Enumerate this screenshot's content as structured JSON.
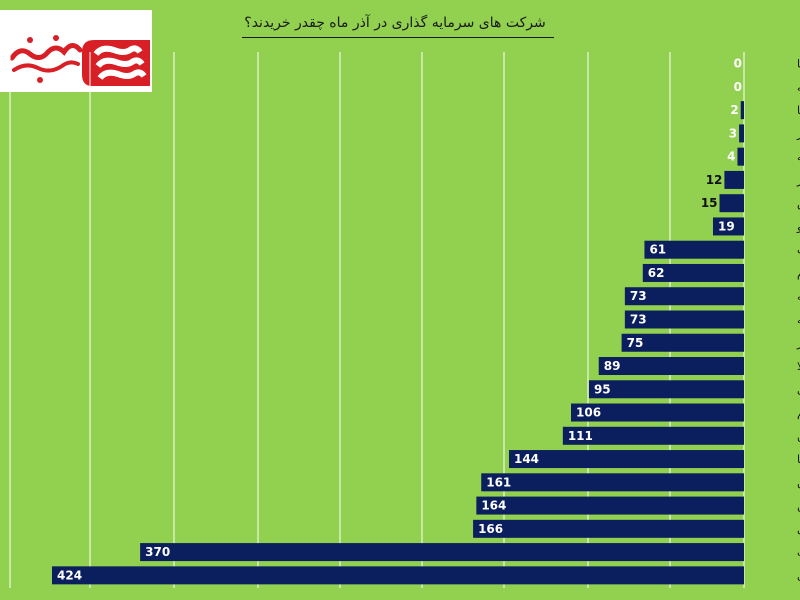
{
  "chart_data": {
    "type": "bar",
    "orientation": "horizontal",
    "title": "شرکت های سرمایه گذاری در آذر ماه چقدر خریدند؟",
    "categories": [
      "وتوصا",
      "سرچشمه",
      "وساپا",
      "وگستر",
      "وبیمه",
      "سربیر",
      "پردیس",
      "وکارو",
      "وسکاب",
      "وفارزم",
      "وسپه",
      "وسپه",
      "واعتبار",
      "اعتلا",
      "واتی",
      "وتوسم",
      "گوهران",
      "وصنا",
      "وسبحان",
      "وبهمن",
      "وبوعلی",
      "وصنعت",
      "ونیکی"
    ],
    "values": [
      0,
      0,
      2,
      3,
      4,
      12,
      15,
      19,
      61,
      62,
      73,
      73,
      75,
      89,
      95,
      106,
      111,
      144,
      161,
      164,
      166,
      370,
      424
    ],
    "xlim": [
      0,
      440
    ],
    "grid": true,
    "colors": {
      "bar": "#0b1f5e",
      "background": "#92d050",
      "grid": "#ffffff"
    }
  }
}
